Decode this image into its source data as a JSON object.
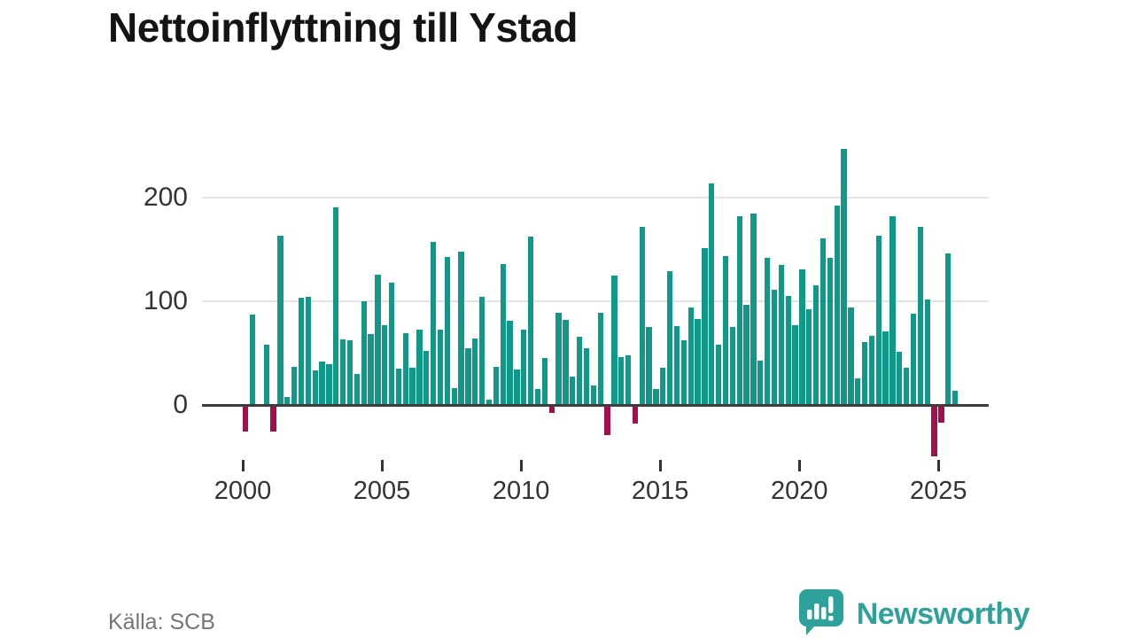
{
  "title": "Nettoinflyttning till Ystad",
  "source": "Källa: SCB",
  "branding": {
    "name": "Newsworthy",
    "logo_icon": "speech-bubble-bar-chart-icon"
  },
  "chart_data": {
    "type": "bar",
    "title": "Nettoinflyttning till Ystad",
    "frequency": "quarterly",
    "period_start": "2000 Q1",
    "period_end": "2025 Q3",
    "x_tick_labels": [
      "2000",
      "2005",
      "2010",
      "2015",
      "2020",
      "2025"
    ],
    "y_tick_labels": [
      0,
      100,
      200
    ],
    "ylim": [
      -60,
      270
    ],
    "grid": "horizontal",
    "colors": {
      "positive": "#109989",
      "negative": "#a50d4d",
      "grid": "#e4e4e4",
      "axis": "#3d3d3d",
      "brand_teal": "#2ea29a"
    },
    "values": [
      -24,
      87,
      0,
      58,
      -24,
      163,
      8,
      37,
      103,
      104,
      33,
      42,
      39,
      191,
      63,
      62,
      30,
      100,
      68,
      126,
      77,
      118,
      35,
      69,
      36,
      73,
      52,
      157,
      73,
      143,
      16,
      148,
      55,
      64,
      104,
      5,
      37,
      136,
      81,
      34,
      73,
      162,
      15,
      45,
      -6,
      89,
      82,
      27,
      66,
      55,
      19,
      89,
      -28,
      125,
      46,
      48,
      -17,
      172,
      75,
      15,
      36,
      129,
      76,
      62,
      94,
      83,
      151,
      214,
      58,
      144,
      75,
      182,
      97,
      185,
      43,
      142,
      111,
      135,
      105,
      77,
      131,
      92,
      115,
      161,
      142,
      192,
      247,
      94,
      26,
      61,
      67,
      163,
      71,
      182,
      51,
      36,
      88,
      172,
      102,
      -48,
      -16,
      146,
      14
    ]
  }
}
